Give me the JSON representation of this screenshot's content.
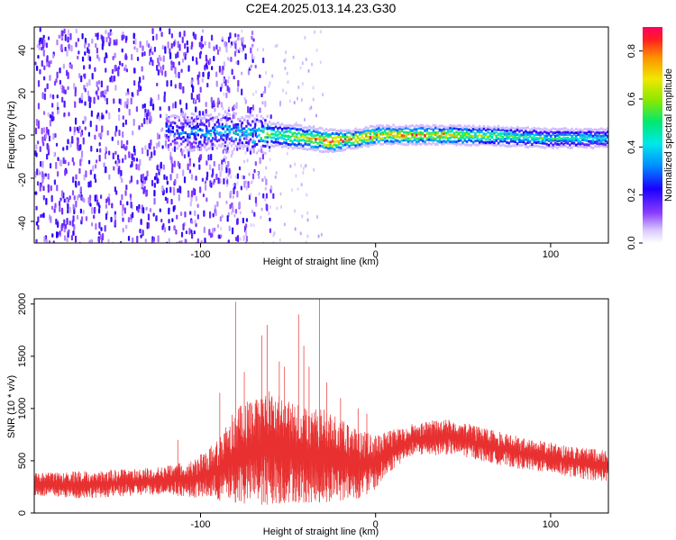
{
  "figure": {
    "title": "C2E4.2025.013.14.23.G30"
  },
  "chart_data": [
    {
      "type": "heatmap",
      "xlabel": "Height of straight line (km)",
      "ylabel": "Frequency (Hz)",
      "xlim": [
        -195,
        133
      ],
      "ylim": [
        -50,
        50
      ],
      "xticks": [
        -100,
        0,
        100
      ],
      "xtick_labels": [
        "-100",
        "0",
        "100"
      ],
      "yticks": [
        -40,
        -20,
        0,
        20,
        40
      ],
      "ytick_labels": [
        "-40",
        "-20",
        "0",
        "20",
        "40"
      ],
      "grid": false,
      "colorbar": {
        "label": "Normalized spectral amplitude",
        "range": [
          0,
          0.9
        ],
        "ticks": [
          0,
          0.2,
          0.4,
          0.6,
          0.8
        ],
        "tick_labels": [
          "0.0",
          "0.2",
          "0.4",
          "0.6",
          "0.8"
        ],
        "colormap": "rainbow",
        "low_color": "#ffffff",
        "high_color": "#ff0060"
      },
      "description_points": {
        "ridge": [
          {
            "x": -115,
            "y": 2.0,
            "amplitude": 0.3
          },
          {
            "x": -100,
            "y": 1.0,
            "amplitude": 0.4
          },
          {
            "x": -85,
            "y": 2.0,
            "amplitude": 0.45
          },
          {
            "x": -70,
            "y": 0.5,
            "amplitude": 0.5
          },
          {
            "x": -55,
            "y": 0.0,
            "amplitude": 0.6
          },
          {
            "x": -40,
            "y": -1.5,
            "amplitude": 0.75
          },
          {
            "x": -25,
            "y": -3.0,
            "amplitude": 0.85
          },
          {
            "x": -10,
            "y": -1.5,
            "amplitude": 0.8
          },
          {
            "x": 0,
            "y": 0.0,
            "amplitude": 0.85
          },
          {
            "x": 20,
            "y": 0.0,
            "amplitude": 0.8
          },
          {
            "x": 40,
            "y": 0.0,
            "amplitude": 0.75
          },
          {
            "x": 70,
            "y": -0.5,
            "amplitude": 0.6
          },
          {
            "x": 100,
            "y": -1.5,
            "amplitude": 0.5
          },
          {
            "x": 130,
            "y": -1.5,
            "amplitude": 0.45
          }
        ],
        "noise_region_xlim": [
          -195,
          -90
        ],
        "noise_amplitude": 0.15
      }
    },
    {
      "type": "line",
      "xlabel": "Height of straight line (km)",
      "ylabel": "SNR (10 * v/v)",
      "xlim": [
        -195,
        133
      ],
      "ylim": [
        0,
        2050
      ],
      "xticks": [
        -100,
        0,
        100
      ],
      "xtick_labels": [
        "-100",
        "0",
        "100"
      ],
      "yticks": [
        0,
        500,
        1000,
        1500,
        2000
      ],
      "ytick_labels": [
        "0",
        "500",
        "1000",
        "1500",
        "2000"
      ],
      "grid": false,
      "line_color": "#e83030",
      "envelope": {
        "x": [
          -195,
          -170,
          -140,
          -120,
          -105,
          -100,
          -90,
          -80,
          -70,
          -60,
          -50,
          -40,
          -30,
          -20,
          -10,
          0,
          10,
          20,
          30,
          40,
          50,
          60,
          70,
          80,
          90,
          100,
          110,
          120,
          133
        ],
        "lower": [
          160,
          140,
          160,
          180,
          150,
          140,
          120,
          100,
          80,
          80,
          100,
          100,
          100,
          120,
          140,
          220,
          420,
          540,
          550,
          560,
          540,
          500,
          460,
          430,
          400,
          380,
          350,
          320,
          300
        ],
        "upper": [
          380,
          400,
          420,
          450,
          500,
          560,
          700,
          1000,
          1100,
          1200,
          1100,
          1000,
          1000,
          900,
          800,
          750,
          800,
          850,
          880,
          900,
          880,
          820,
          780,
          740,
          700,
          680,
          650,
          620,
          600
        ]
      },
      "spikes": [
        {
          "x": -113,
          "y": 700
        },
        {
          "x": -89,
          "y": 1150
        },
        {
          "x": -80,
          "y": 2020
        },
        {
          "x": -75,
          "y": 1350
        },
        {
          "x": -65,
          "y": 1700
        },
        {
          "x": -62,
          "y": 1800
        },
        {
          "x": -55,
          "y": 1450
        },
        {
          "x": -52,
          "y": 1400
        },
        {
          "x": -44,
          "y": 1900
        },
        {
          "x": -41,
          "y": 1600
        },
        {
          "x": -38,
          "y": 1400
        },
        {
          "x": -32,
          "y": 2050
        },
        {
          "x": -28,
          "y": 1250
        },
        {
          "x": -20,
          "y": 1100
        },
        {
          "x": -10,
          "y": 1000
        },
        {
          "x": -5,
          "y": 950
        }
      ]
    }
  ]
}
